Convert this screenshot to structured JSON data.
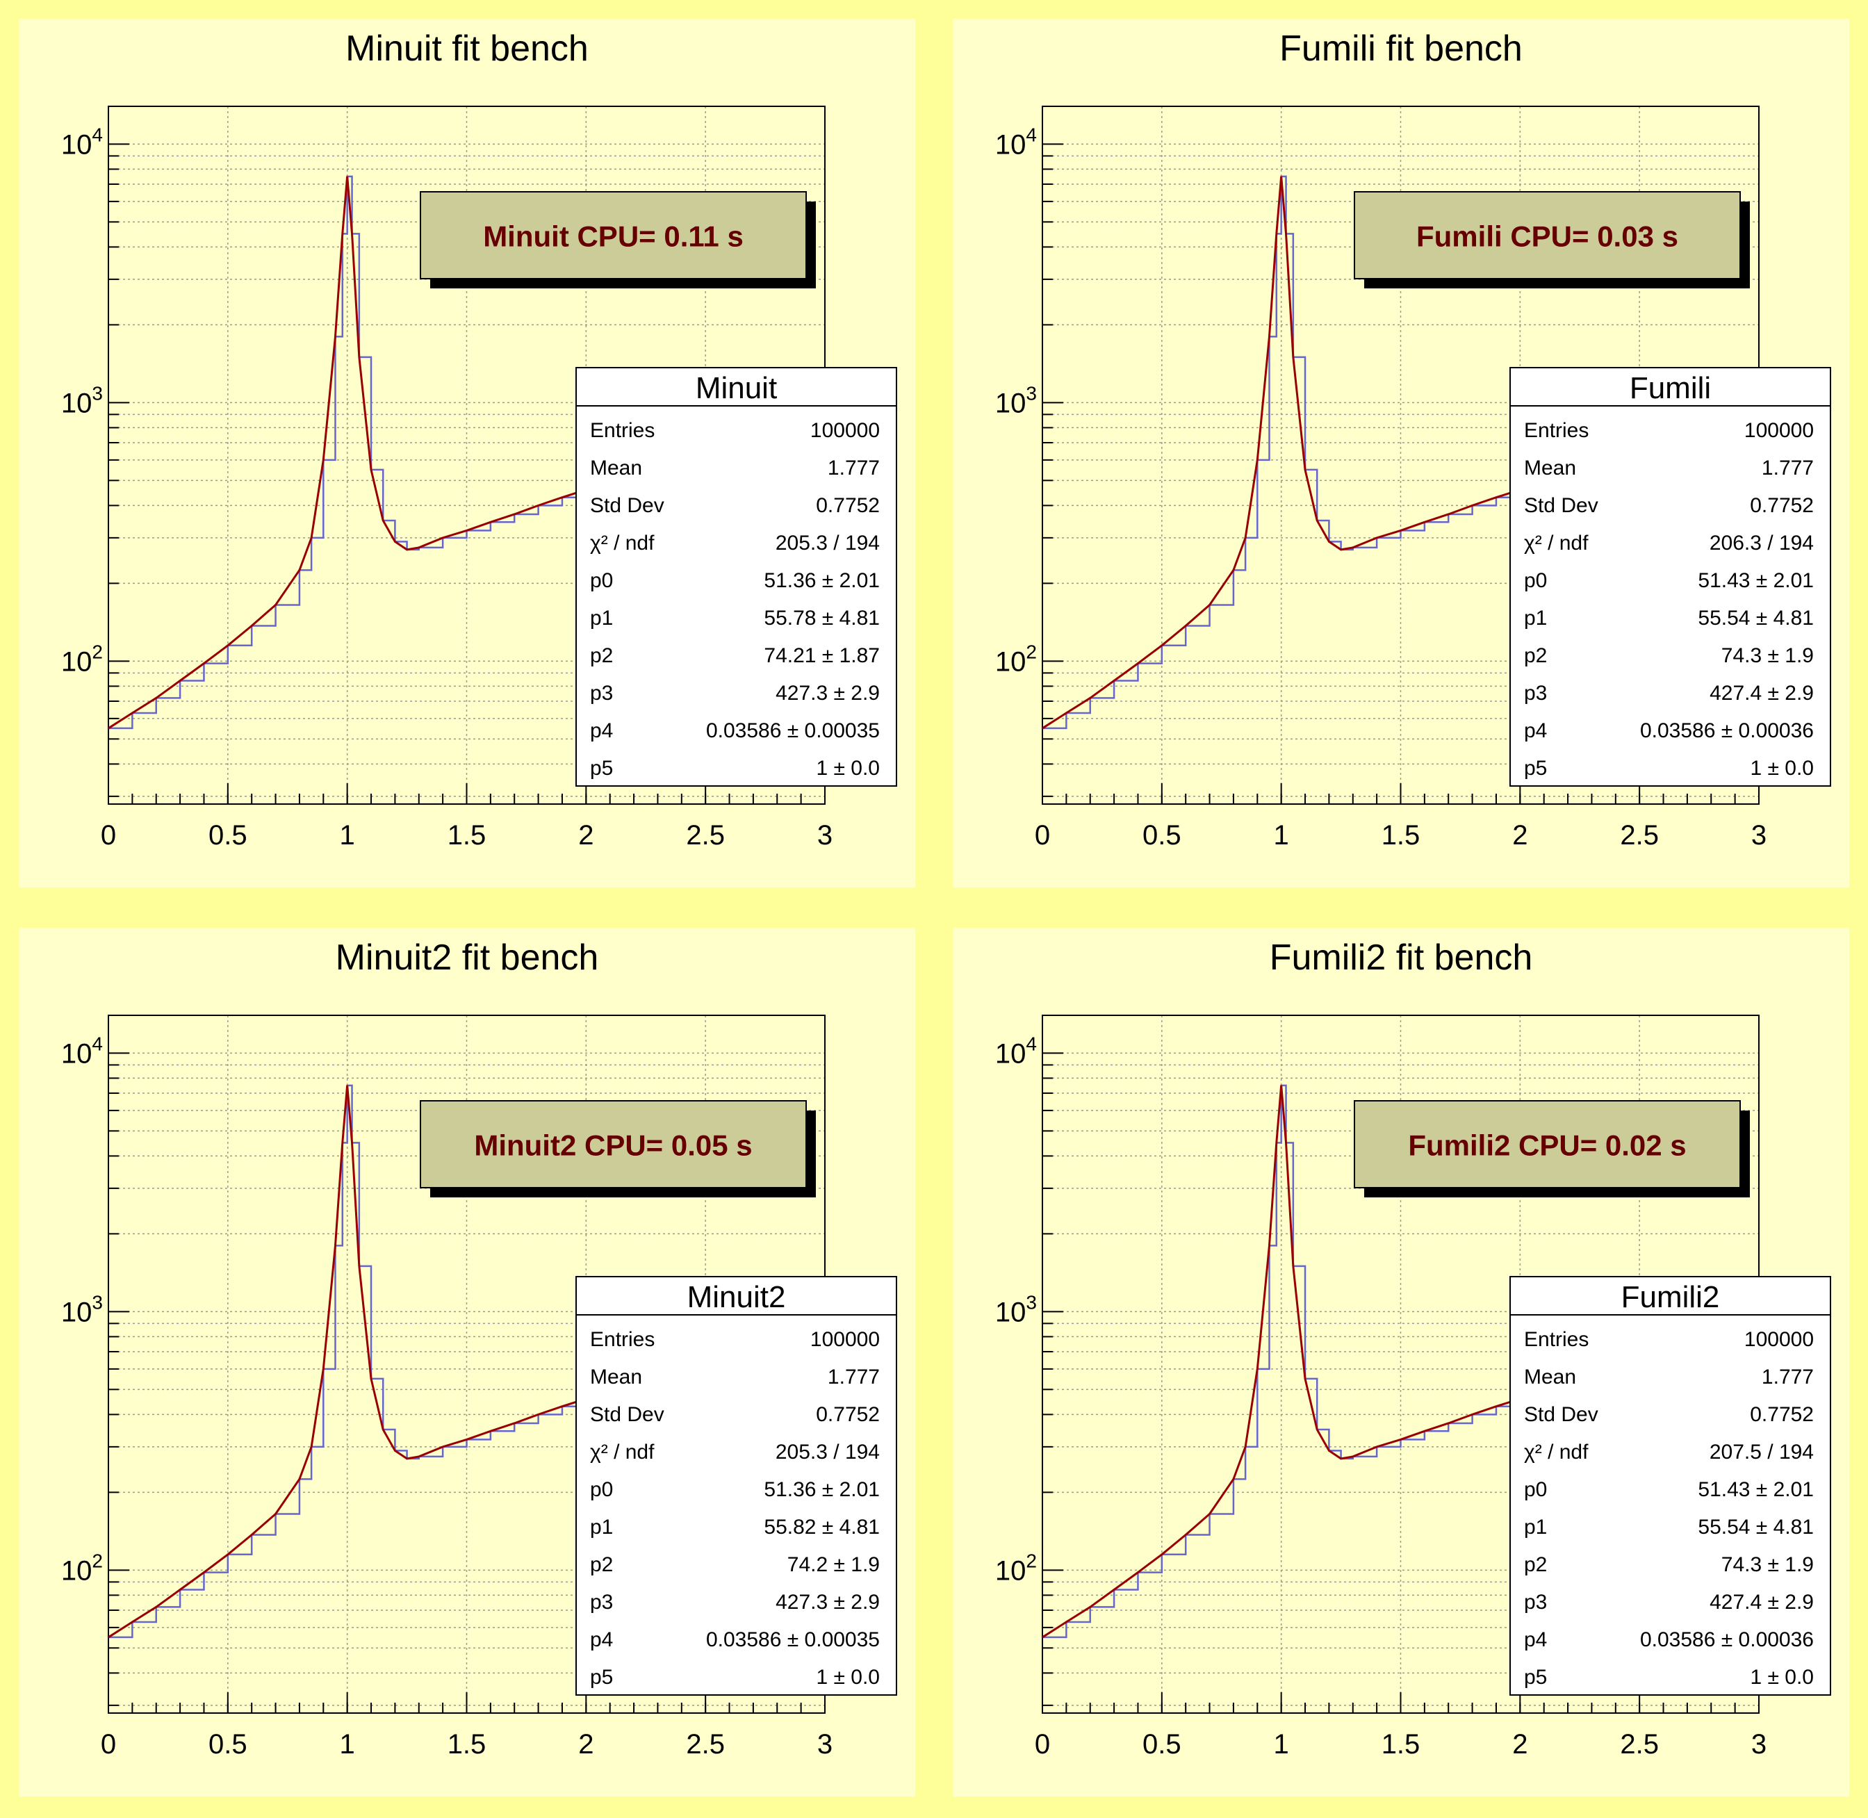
{
  "colors": {
    "canvas_bg": "#ffff99",
    "pad_bg": "#ffffcc",
    "cpu_box_fill": "#cccc99",
    "cpu_text": "#660000",
    "histogram_line": "#6666cc",
    "fit_line": "#990000"
  },
  "chart_data": [
    {
      "type": "line",
      "title": "Minuit fit bench",
      "xlabel": "",
      "ylabel": "",
      "xlim": [
        0,
        3
      ],
      "ylim": [
        28,
        14000
      ],
      "yscale": "log",
      "grid": true,
      "x_ticks": [
        "0",
        "0.5",
        "1",
        "1.5",
        "2",
        "2.5",
        "3"
      ],
      "y_ticks": [
        {
          "base": "10",
          "exp": "2",
          "value": 100
        },
        {
          "base": "10",
          "exp": "3",
          "value": 1000
        },
        {
          "base": "10",
          "exp": "4",
          "value": 10000
        }
      ],
      "cpu_label": "Minuit CPU= 0.11 s",
      "stats": {
        "title": "Minuit",
        "rows": [
          {
            "label": "Entries",
            "value": "100000"
          },
          {
            "label": "Mean",
            "value": "1.777"
          },
          {
            "label": "Std Dev",
            "value": "0.7752"
          },
          {
            "label": "χ² / ndf",
            "value": "205.3 / 194"
          },
          {
            "label": "p0",
            "value": "51.36 ± 2.01"
          },
          {
            "label": "p1",
            "value": "55.78 ± 4.81"
          },
          {
            "label": "p2",
            "value": "74.21 ± 1.87"
          },
          {
            "label": "p3",
            "value": "427.3 ± 2.9"
          },
          {
            "label": "p4",
            "value": "0.03586 ± 0.00035"
          },
          {
            "label": "p5",
            "value": "1 ± 0.0"
          }
        ]
      },
      "series": [
        {
          "kind": "histogram",
          "x": [
            0.0,
            0.1,
            0.2,
            0.3,
            0.4,
            0.5,
            0.6,
            0.7,
            0.8,
            0.85,
            0.9,
            0.95,
            0.98,
            1.0,
            1.02,
            1.05,
            1.1,
            1.15,
            1.2,
            1.25,
            1.3,
            1.4,
            1.5,
            1.6,
            1.7,
            1.8,
            1.9,
            2.0
          ],
          "y": [
            55,
            63,
            72,
            84,
            98,
            115,
            137,
            165,
            225,
            300,
            600,
            1800,
            4500,
            7500,
            4500,
            1500,
            550,
            350,
            290,
            270,
            275,
            300,
            320,
            345,
            370,
            400,
            430,
            460
          ]
        },
        {
          "kind": "fit",
          "x": [
            0.0,
            0.1,
            0.2,
            0.3,
            0.4,
            0.5,
            0.6,
            0.7,
            0.8,
            0.85,
            0.9,
            0.95,
            0.98,
            1.0,
            1.02,
            1.05,
            1.1,
            1.15,
            1.2,
            1.25,
            1.3,
            1.4,
            1.5,
            1.6,
            1.7,
            1.8,
            1.9,
            2.0
          ],
          "y": [
            55,
            63,
            72,
            84,
            98,
            115,
            137,
            165,
            225,
            300,
            600,
            1800,
            4500,
            7500,
            4500,
            1500,
            550,
            350,
            290,
            270,
            275,
            300,
            320,
            345,
            370,
            400,
            430,
            460
          ]
        }
      ]
    },
    {
      "type": "line",
      "title": "Fumili fit bench",
      "xlabel": "",
      "ylabel": "",
      "xlim": [
        0,
        3
      ],
      "ylim": [
        28,
        14000
      ],
      "yscale": "log",
      "grid": true,
      "x_ticks": [
        "0",
        "0.5",
        "1",
        "1.5",
        "2",
        "2.5",
        "3"
      ],
      "y_ticks": [
        {
          "base": "10",
          "exp": "2",
          "value": 100
        },
        {
          "base": "10",
          "exp": "3",
          "value": 1000
        },
        {
          "base": "10",
          "exp": "4",
          "value": 10000
        }
      ],
      "cpu_label": "Fumili CPU= 0.03 s",
      "stats": {
        "title": "Fumili",
        "rows": [
          {
            "label": "Entries",
            "value": "100000"
          },
          {
            "label": "Mean",
            "value": "1.777"
          },
          {
            "label": "Std Dev",
            "value": "0.7752"
          },
          {
            "label": "χ² / ndf",
            "value": "206.3 / 194"
          },
          {
            "label": "p0",
            "value": "51.43 ± 2.01"
          },
          {
            "label": "p1",
            "value": "55.54 ± 4.81"
          },
          {
            "label": "p2",
            "value": "74.3 ± 1.9"
          },
          {
            "label": "p3",
            "value": "427.4 ± 2.9"
          },
          {
            "label": "p4",
            "value": "0.03586 ± 0.00036"
          },
          {
            "label": "p5",
            "value": "1 ± 0.0"
          }
        ]
      },
      "series": [
        {
          "kind": "histogram",
          "x": [
            0.0,
            0.1,
            0.2,
            0.3,
            0.4,
            0.5,
            0.6,
            0.7,
            0.8,
            0.85,
            0.9,
            0.95,
            0.98,
            1.0,
            1.02,
            1.05,
            1.1,
            1.15,
            1.2,
            1.25,
            1.3,
            1.4,
            1.5,
            1.6,
            1.7,
            1.8,
            1.9,
            2.0
          ],
          "y": [
            55,
            63,
            72,
            84,
            98,
            115,
            137,
            165,
            225,
            300,
            600,
            1800,
            4500,
            7500,
            4500,
            1500,
            550,
            350,
            290,
            270,
            275,
            300,
            320,
            345,
            370,
            400,
            430,
            460
          ]
        },
        {
          "kind": "fit",
          "x": [
            0.0,
            0.1,
            0.2,
            0.3,
            0.4,
            0.5,
            0.6,
            0.7,
            0.8,
            0.85,
            0.9,
            0.95,
            0.98,
            1.0,
            1.02,
            1.05,
            1.1,
            1.15,
            1.2,
            1.25,
            1.3,
            1.4,
            1.5,
            1.6,
            1.7,
            1.8,
            1.9,
            2.0
          ],
          "y": [
            55,
            63,
            72,
            84,
            98,
            115,
            137,
            165,
            225,
            300,
            600,
            1800,
            4500,
            7500,
            4500,
            1500,
            550,
            350,
            290,
            270,
            275,
            300,
            320,
            345,
            370,
            400,
            430,
            460
          ]
        }
      ]
    },
    {
      "type": "line",
      "title": "Minuit2 fit bench",
      "xlabel": "",
      "ylabel": "",
      "xlim": [
        0,
        3
      ],
      "ylim": [
        28,
        14000
      ],
      "yscale": "log",
      "grid": true,
      "x_ticks": [
        "0",
        "0.5",
        "1",
        "1.5",
        "2",
        "2.5",
        "3"
      ],
      "y_ticks": [
        {
          "base": "10",
          "exp": "2",
          "value": 100
        },
        {
          "base": "10",
          "exp": "3",
          "value": 1000
        },
        {
          "base": "10",
          "exp": "4",
          "value": 10000
        }
      ],
      "cpu_label": "Minuit2 CPU= 0.05 s",
      "stats": {
        "title": "Minuit2",
        "rows": [
          {
            "label": "Entries",
            "value": "100000"
          },
          {
            "label": "Mean",
            "value": "1.777"
          },
          {
            "label": "Std Dev",
            "value": "0.7752"
          },
          {
            "label": "χ² / ndf",
            "value": "205.3 / 194"
          },
          {
            "label": "p0",
            "value": "51.36 ± 2.01"
          },
          {
            "label": "p1",
            "value": "55.82 ± 4.81"
          },
          {
            "label": "p2",
            "value": "74.2 ± 1.9"
          },
          {
            "label": "p3",
            "value": "427.3 ± 2.9"
          },
          {
            "label": "p4",
            "value": "0.03586 ± 0.00035"
          },
          {
            "label": "p5",
            "value": "1 ± 0.0"
          }
        ]
      },
      "series": [
        {
          "kind": "histogram",
          "x": [
            0.0,
            0.1,
            0.2,
            0.3,
            0.4,
            0.5,
            0.6,
            0.7,
            0.8,
            0.85,
            0.9,
            0.95,
            0.98,
            1.0,
            1.02,
            1.05,
            1.1,
            1.15,
            1.2,
            1.25,
            1.3,
            1.4,
            1.5,
            1.6,
            1.7,
            1.8,
            1.9,
            2.0
          ],
          "y": [
            55,
            63,
            72,
            84,
            98,
            115,
            137,
            165,
            225,
            300,
            600,
            1800,
            4500,
            7500,
            4500,
            1500,
            550,
            350,
            290,
            270,
            275,
            300,
            320,
            345,
            370,
            400,
            430,
            460
          ]
        },
        {
          "kind": "fit",
          "x": [
            0.0,
            0.1,
            0.2,
            0.3,
            0.4,
            0.5,
            0.6,
            0.7,
            0.8,
            0.85,
            0.9,
            0.95,
            0.98,
            1.0,
            1.02,
            1.05,
            1.1,
            1.15,
            1.2,
            1.25,
            1.3,
            1.4,
            1.5,
            1.6,
            1.7,
            1.8,
            1.9,
            2.0
          ],
          "y": [
            55,
            63,
            72,
            84,
            98,
            115,
            137,
            165,
            225,
            300,
            600,
            1800,
            4500,
            7500,
            4500,
            1500,
            550,
            350,
            290,
            270,
            275,
            300,
            320,
            345,
            370,
            400,
            430,
            460
          ]
        }
      ]
    },
    {
      "type": "line",
      "title": "Fumili2 fit bench",
      "xlabel": "",
      "ylabel": "",
      "xlim": [
        0,
        3
      ],
      "ylim": [
        28,
        14000
      ],
      "yscale": "log",
      "grid": true,
      "x_ticks": [
        "0",
        "0.5",
        "1",
        "1.5",
        "2",
        "2.5",
        "3"
      ],
      "y_ticks": [
        {
          "base": "10",
          "exp": "2",
          "value": 100
        },
        {
          "base": "10",
          "exp": "3",
          "value": 1000
        },
        {
          "base": "10",
          "exp": "4",
          "value": 10000
        }
      ],
      "cpu_label": "Fumili2 CPU= 0.02 s",
      "stats": {
        "title": "Fumili2",
        "rows": [
          {
            "label": "Entries",
            "value": "100000"
          },
          {
            "label": "Mean",
            "value": "1.777"
          },
          {
            "label": "Std Dev",
            "value": "0.7752"
          },
          {
            "label": "χ² / ndf",
            "value": "207.5 / 194"
          },
          {
            "label": "p0",
            "value": "51.43 ± 2.01"
          },
          {
            "label": "p1",
            "value": "55.54 ± 4.81"
          },
          {
            "label": "p2",
            "value": "74.3 ± 1.9"
          },
          {
            "label": "p3",
            "value": "427.4 ± 2.9"
          },
          {
            "label": "p4",
            "value": "0.03586 ± 0.00036"
          },
          {
            "label": "p5",
            "value": "1 ± 0.0"
          }
        ]
      },
      "series": [
        {
          "kind": "histogram",
          "x": [
            0.0,
            0.1,
            0.2,
            0.3,
            0.4,
            0.5,
            0.6,
            0.7,
            0.8,
            0.85,
            0.9,
            0.95,
            0.98,
            1.0,
            1.02,
            1.05,
            1.1,
            1.15,
            1.2,
            1.25,
            1.3,
            1.4,
            1.5,
            1.6,
            1.7,
            1.8,
            1.9,
            2.0
          ],
          "y": [
            55,
            63,
            72,
            84,
            98,
            115,
            137,
            165,
            225,
            300,
            600,
            1800,
            4500,
            7500,
            4500,
            1500,
            550,
            350,
            290,
            270,
            275,
            300,
            320,
            345,
            370,
            400,
            430,
            460
          ]
        },
        {
          "kind": "fit",
          "x": [
            0.0,
            0.1,
            0.2,
            0.3,
            0.4,
            0.5,
            0.6,
            0.7,
            0.8,
            0.85,
            0.9,
            0.95,
            0.98,
            1.0,
            1.02,
            1.05,
            1.1,
            1.15,
            1.2,
            1.25,
            1.3,
            1.4,
            1.5,
            1.6,
            1.7,
            1.8,
            1.9,
            2.0
          ],
          "y": [
            55,
            63,
            72,
            84,
            98,
            115,
            137,
            165,
            225,
            300,
            600,
            1800,
            4500,
            7500,
            4500,
            1500,
            550,
            350,
            290,
            270,
            275,
            300,
            320,
            345,
            370,
            400,
            430,
            460
          ]
        }
      ]
    }
  ]
}
